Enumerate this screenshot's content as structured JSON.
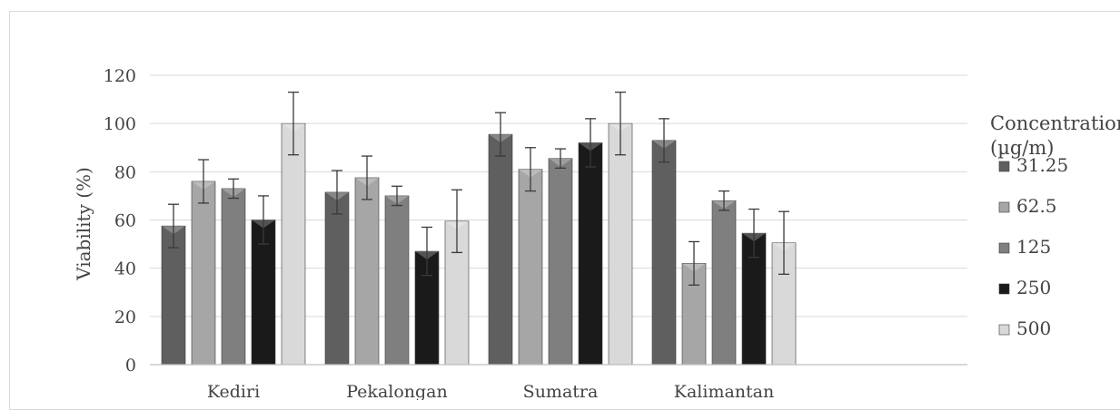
{
  "chart_data": {
    "type": "bar",
    "title": "",
    "xlabel": "",
    "ylabel": "Viability (%)",
    "ylim": [
      0,
      120
    ],
    "yticks": [
      0,
      20,
      40,
      60,
      80,
      100,
      120
    ],
    "grid": true,
    "legend_position": "right",
    "legend_title": "Concentration (µg/m)",
    "categories": [
      "Kediri",
      "Pekalongan",
      "Sumatra",
      "Kalimantan"
    ],
    "series": [
      {
        "name": "31.25",
        "color": "#5f5f5f",
        "values": [
          57.5,
          71.5,
          95.5,
          93
        ],
        "errors": [
          9,
          9,
          9,
          9
        ]
      },
      {
        "name": "62.5",
        "color": "#a6a6a6",
        "values": [
          76,
          77.5,
          81,
          42
        ],
        "errors": [
          9,
          9,
          9,
          9
        ]
      },
      {
        "name": "125",
        "color": "#7f7f7f",
        "values": [
          73,
          70,
          85.5,
          68
        ],
        "errors": [
          4,
          4,
          4,
          4
        ]
      },
      {
        "name": "250",
        "color": "#1a1a1a",
        "values": [
          60,
          47,
          92,
          54.5
        ],
        "errors": [
          10,
          10,
          10,
          10
        ]
      },
      {
        "name": "500",
        "color": "#d9d9d9",
        "values": [
          100,
          59.5,
          100,
          50.5
        ],
        "errors": [
          13,
          13,
          13,
          13
        ]
      }
    ]
  }
}
